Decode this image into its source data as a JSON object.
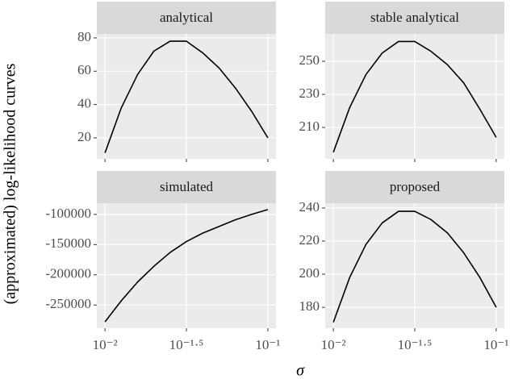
{
  "ylabel": "(approximated) log-likelihood curves",
  "xlabel": "σ",
  "x_axis": {
    "log": true,
    "xlim": [
      0.00891,
      0.1122
    ],
    "xticks": [
      {
        "value": 0.01,
        "label": "10⁻²"
      },
      {
        "value": 0.0316228,
        "label": "10⁻¹·⁵"
      },
      {
        "value": 0.1,
        "label": "10⁻¹"
      }
    ]
  },
  "grid": true,
  "chart_data": [
    {
      "type": "line",
      "title": "analytical",
      "color": "#000000",
      "x": [
        0.01,
        0.01259,
        0.01585,
        0.01995,
        0.02512,
        0.03162,
        0.03981,
        0.05012,
        0.0631,
        0.07943,
        0.1
      ],
      "values": [
        11,
        38,
        58,
        72,
        78,
        78,
        71,
        62,
        50,
        36,
        20
      ],
      "ylim": [
        7.4,
        82.4
      ],
      "yticks": [
        20,
        40,
        60,
        80
      ]
    },
    {
      "type": "line",
      "title": "stable analytical",
      "color": "#000000",
      "x": [
        0.01,
        0.01259,
        0.01585,
        0.01995,
        0.02512,
        0.03162,
        0.03981,
        0.05012,
        0.0631,
        0.07943,
        0.1
      ],
      "values": [
        195,
        222,
        242,
        255,
        262,
        262,
        256,
        248,
        237,
        221,
        204
      ],
      "ylim": [
        191,
        266.6
      ],
      "yticks": [
        210,
        230,
        250
      ]
    },
    {
      "type": "line",
      "title": "simulated",
      "color": "#000000",
      "x": [
        0.01,
        0.01259,
        0.01585,
        0.01995,
        0.02512,
        0.03162,
        0.03981,
        0.05012,
        0.0631,
        0.07943,
        0.1
      ],
      "values": [
        -278000,
        -243000,
        -212000,
        -186000,
        -163000,
        -145000,
        -131000,
        -120000,
        -109000,
        -100000,
        -92000
      ],
      "ylim": [
        -288460,
        -81430
      ],
      "yticks": [
        -250000,
        -200000,
        -150000,
        -100000
      ]
    },
    {
      "type": "line",
      "title": "proposed",
      "color": "#000000",
      "x": [
        0.01,
        0.01259,
        0.01585,
        0.01995,
        0.02512,
        0.03162,
        0.03981,
        0.05012,
        0.0631,
        0.07943,
        0.1
      ],
      "values": [
        171,
        198,
        218,
        231,
        238,
        238,
        233,
        225,
        213,
        198,
        180
      ],
      "ylim": [
        167.4,
        242.9
      ],
      "yticks": [
        180,
        200,
        220,
        240
      ]
    }
  ]
}
